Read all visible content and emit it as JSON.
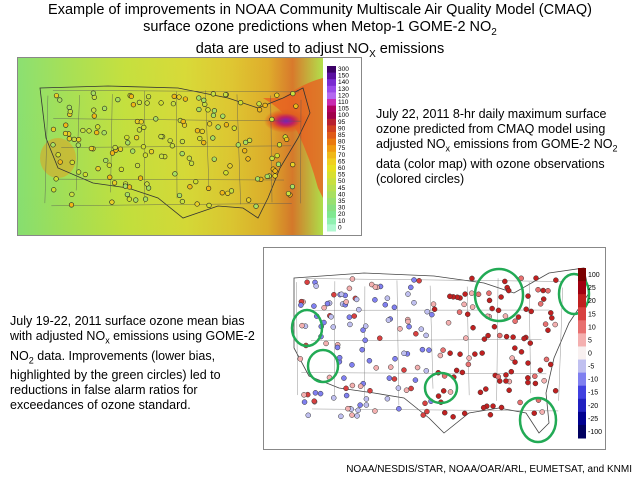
{
  "title": {
    "line1": "Example of improvements in NOAA Community Multiscale Air Quality Model (CMAQ)",
    "line2_pre": "surface ozone predictions when Metop-1 GOME-2 NO",
    "line2_sub": "2",
    "line3_pre": "data are used to adjust NO",
    "line3_sub": "X",
    "line3_post": " emissions"
  },
  "map1": {
    "description": {
      "t1": "July 22, 2011 8-hr daily maximum surface ozone predicted from CMAQ model using adjusted NO",
      "s1": "x",
      "t2": " emissions from GOME-2 NO",
      "s2": "2",
      "t3": " data (color map) with ozone observations (colored circles)"
    },
    "colorbar": {
      "ticks": [
        "300",
        "150",
        "140",
        "130",
        "120",
        "110",
        "105",
        "100",
        "95",
        "90",
        "85",
        "80",
        "75",
        "70",
        "65",
        "60",
        "55",
        "50",
        "45",
        "40",
        "35",
        "30",
        "20",
        "10",
        "0"
      ],
      "colors": [
        "#3b0066",
        "#5a10a0",
        "#7a2bd0",
        "#9a4ae8",
        "#b46af0",
        "#c92ab0",
        "#b00060",
        "#a0004a",
        "#b82030",
        "#d04020",
        "#e05a18",
        "#ea7a10",
        "#f09a10",
        "#f0b818",
        "#f0d020",
        "#e8e020",
        "#d8e030",
        "#c8e040",
        "#b8e050",
        "#a8e060",
        "#98e070",
        "#88e080",
        "#80e890",
        "#90f0b0",
        "#b0f8d0"
      ]
    }
  },
  "map2": {
    "description": {
      "t1": "July 19-22, 2011 surface ozone mean bias with adjusted NO",
      "s1": "x",
      "t2": " emissions using GOME-2 NO",
      "s2": "2",
      "t3": " data. Improvements (lower bias, highlighted by the green circles) led to reductions in false alarm ratios for exceedances of ozone standard."
    },
    "colorbar": {
      "ticks": [
        "100",
        "25",
        "20",
        "15",
        "10",
        "5",
        "0",
        "-5",
        "-10",
        "-15",
        "-20",
        "-25",
        "-100"
      ],
      "colors": [
        "#7a0000",
        "#a00010",
        "#c02020",
        "#d84040",
        "#e87070",
        "#f4b0b0",
        "#f8f0f0",
        "#c0c0f0",
        "#8080f0",
        "#4040e0",
        "#2020c0",
        "#000090",
        "#000060"
      ]
    }
  },
  "credit": "NOAA/NESDIS/STAR, NOAA/OAR/ARL, EUMETSAT, and KNMI"
}
